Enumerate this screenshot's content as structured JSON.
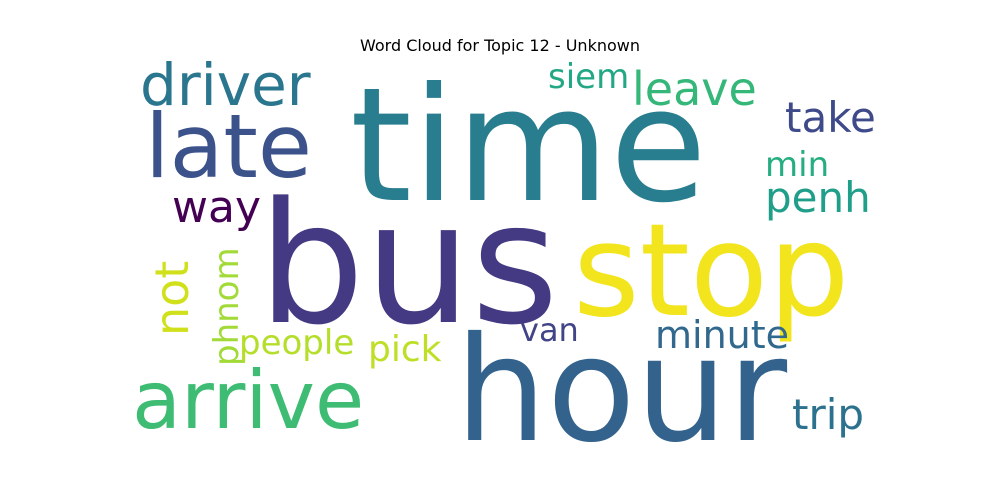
{
  "chart_data": {
    "type": "wordcloud",
    "title": "Word Cloud for Topic 12 - Unknown",
    "words": [
      {
        "text": "bus",
        "color": "#443983"
      },
      {
        "text": "time",
        "color": "#287d8e"
      },
      {
        "text": "stop",
        "color": "#f2e51d"
      },
      {
        "text": "hour",
        "color": "#33638d"
      },
      {
        "text": "arrive",
        "color": "#3fbc73"
      },
      {
        "text": "late",
        "color": "#3b528b"
      },
      {
        "text": "driver",
        "color": "#2a768e"
      },
      {
        "text": "leave",
        "color": "#35b779"
      },
      {
        "text": "siem",
        "color": "#22a884"
      },
      {
        "text": "take",
        "color": "#3e4a89"
      },
      {
        "text": "min",
        "color": "#26ad81"
      },
      {
        "text": "penh",
        "color": "#1f9e89"
      },
      {
        "text": "way",
        "color": "#440154"
      },
      {
        "text": "not",
        "color": "#d0e11c"
      },
      {
        "text": "phnom",
        "color": "#a2da37"
      },
      {
        "text": "people",
        "color": "#b5de2b"
      },
      {
        "text": "pick",
        "color": "#bddf26"
      },
      {
        "text": "van",
        "color": "#414487"
      },
      {
        "text": "minute",
        "color": "#31688e"
      },
      {
        "text": "trip",
        "color": "#2c728e"
      }
    ]
  }
}
